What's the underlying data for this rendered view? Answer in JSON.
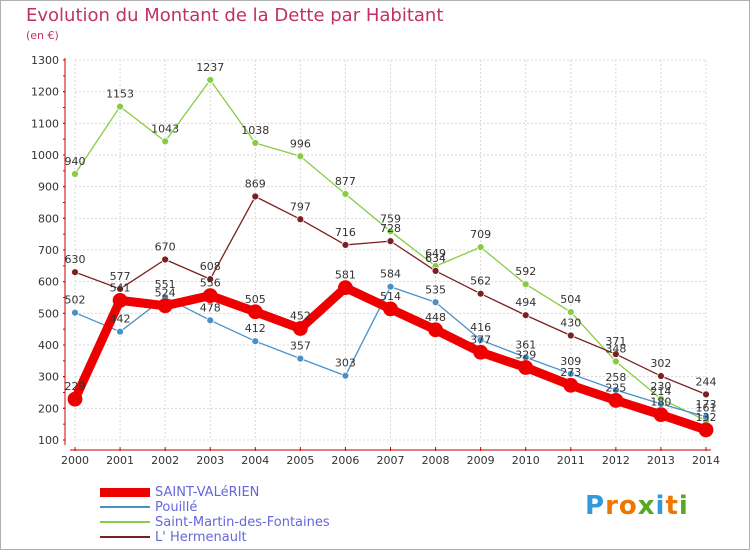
{
  "chart_data": {
    "type": "line",
    "title": "Evolution du Montant de la Dette par Habitant",
    "subtitle": "(en €)",
    "x": [
      "2000",
      "2001",
      "2002",
      "2003",
      "2004",
      "2005",
      "2006",
      "2007",
      "2008",
      "2009",
      "2010",
      "2011",
      "2012",
      "2013",
      "2014"
    ],
    "ylim": [
      100,
      1300
    ],
    "yticks": [
      "100",
      "200",
      "300",
      "400",
      "500",
      "600",
      "700",
      "800",
      "900",
      "1000",
      "1100",
      "1200",
      "1300"
    ],
    "grid": true,
    "legend_placement": "bottom-left",
    "series": [
      {
        "name": "SAINT-VALéRIEN",
        "color": "#ee0000",
        "values": [
          229,
          541,
          524,
          556,
          505,
          452,
          581,
          514,
          448,
          377,
          329,
          273,
          225,
          180,
          132
        ]
      },
      {
        "name": "Pouillé",
        "color": "#4a90c8",
        "values": [
          502,
          442,
          551,
          478,
          412,
          357,
          303,
          584,
          535,
          416,
          361,
          309,
          258,
          214,
          173
        ]
      },
      {
        "name": "Saint-Martin-des-Fontaines",
        "color": "#88cc44",
        "values": [
          940,
          1153,
          1043,
          1237,
          1038,
          996,
          877,
          759,
          649,
          709,
          592,
          504,
          348,
          230,
          161
        ]
      },
      {
        "name": "L' Hermenault",
        "color": "#7a2020",
        "values": [
          630,
          577,
          670,
          608,
          869,
          797,
          716,
          728,
          634,
          562,
          494,
          430,
          371,
          302,
          244
        ]
      }
    ]
  },
  "logo": {
    "letters": [
      "P",
      "r",
      "o",
      "x",
      "i",
      "t",
      "i"
    ],
    "colors": [
      "#3399dd",
      "#ee7700",
      "#ee7700",
      "#55aa22",
      "#3399dd",
      "#ee7700",
      "#55aa22"
    ]
  }
}
